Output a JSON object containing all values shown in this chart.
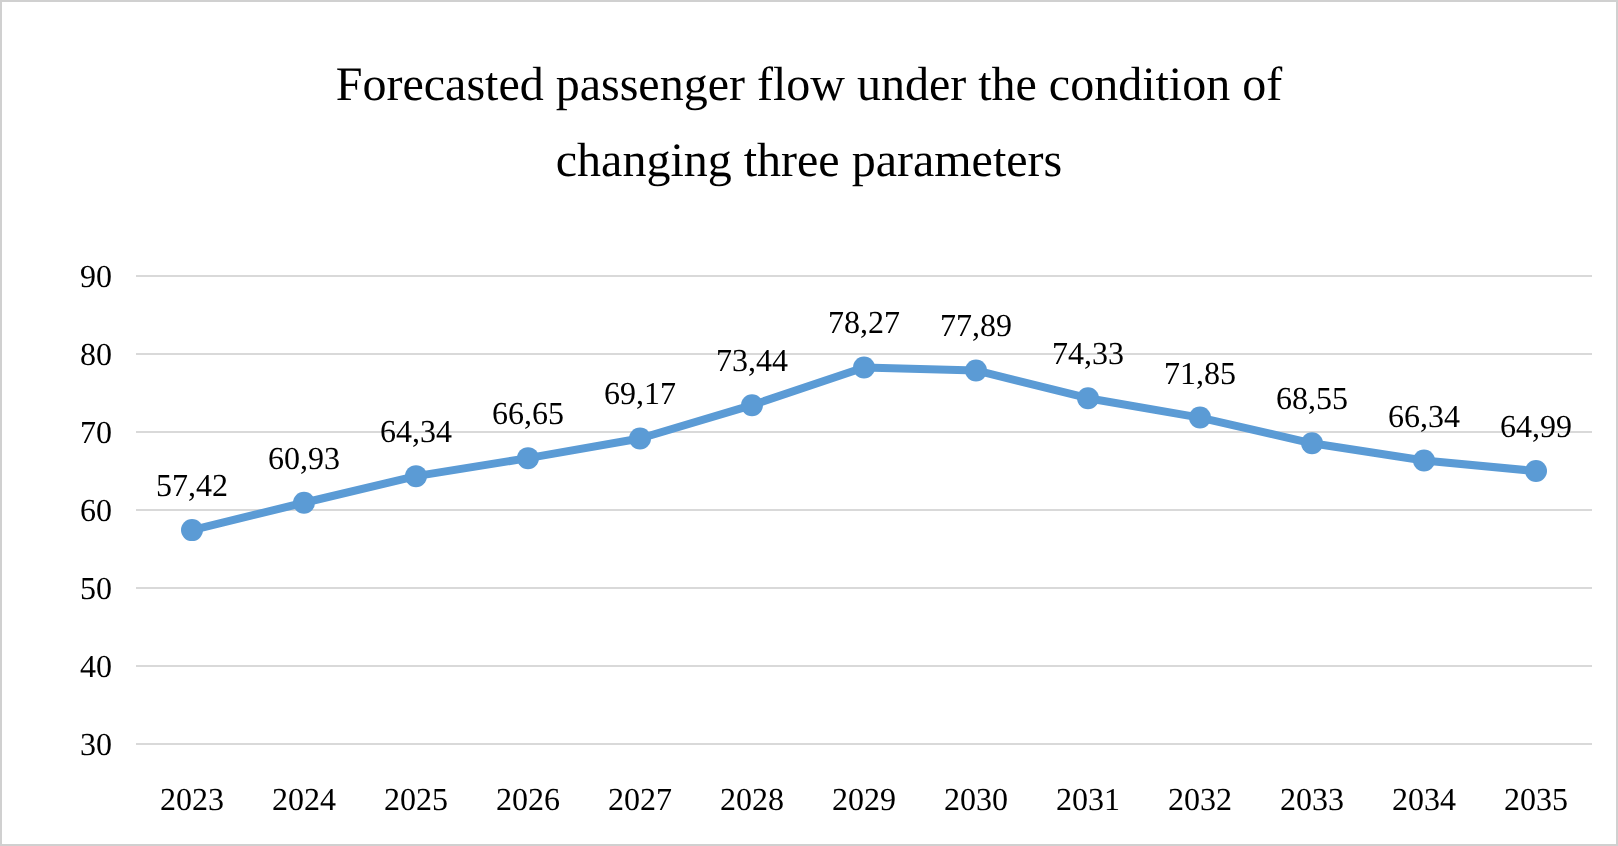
{
  "chart_data": {
    "type": "line",
    "title": "Forecasted passenger flow under the condition of changing three parameters",
    "categories": [
      "2023",
      "2024",
      "2025",
      "2026",
      "2027",
      "2028",
      "2029",
      "2030",
      "2031",
      "2032",
      "2033",
      "2034",
      "2035"
    ],
    "series": [
      {
        "color": "#5b9bd5",
        "values": [
          57.42,
          60.93,
          64.34,
          66.65,
          69.17,
          73.44,
          78.27,
          77.89,
          74.33,
          71.85,
          68.55,
          66.34,
          64.99
        ],
        "value_labels": [
          "57,42",
          "60,93",
          "64,34",
          "66,65",
          "69,17",
          "73,44",
          "78,27",
          "77,89",
          "74,33",
          "71,85",
          "68,55",
          "66,34",
          "64,99"
        ]
      }
    ],
    "ylim": [
      30,
      90
    ],
    "yticks": [
      30,
      40,
      50,
      60,
      70,
      80,
      90
    ],
    "grid": "y",
    "marker": "circle",
    "line_style": "solid"
  }
}
